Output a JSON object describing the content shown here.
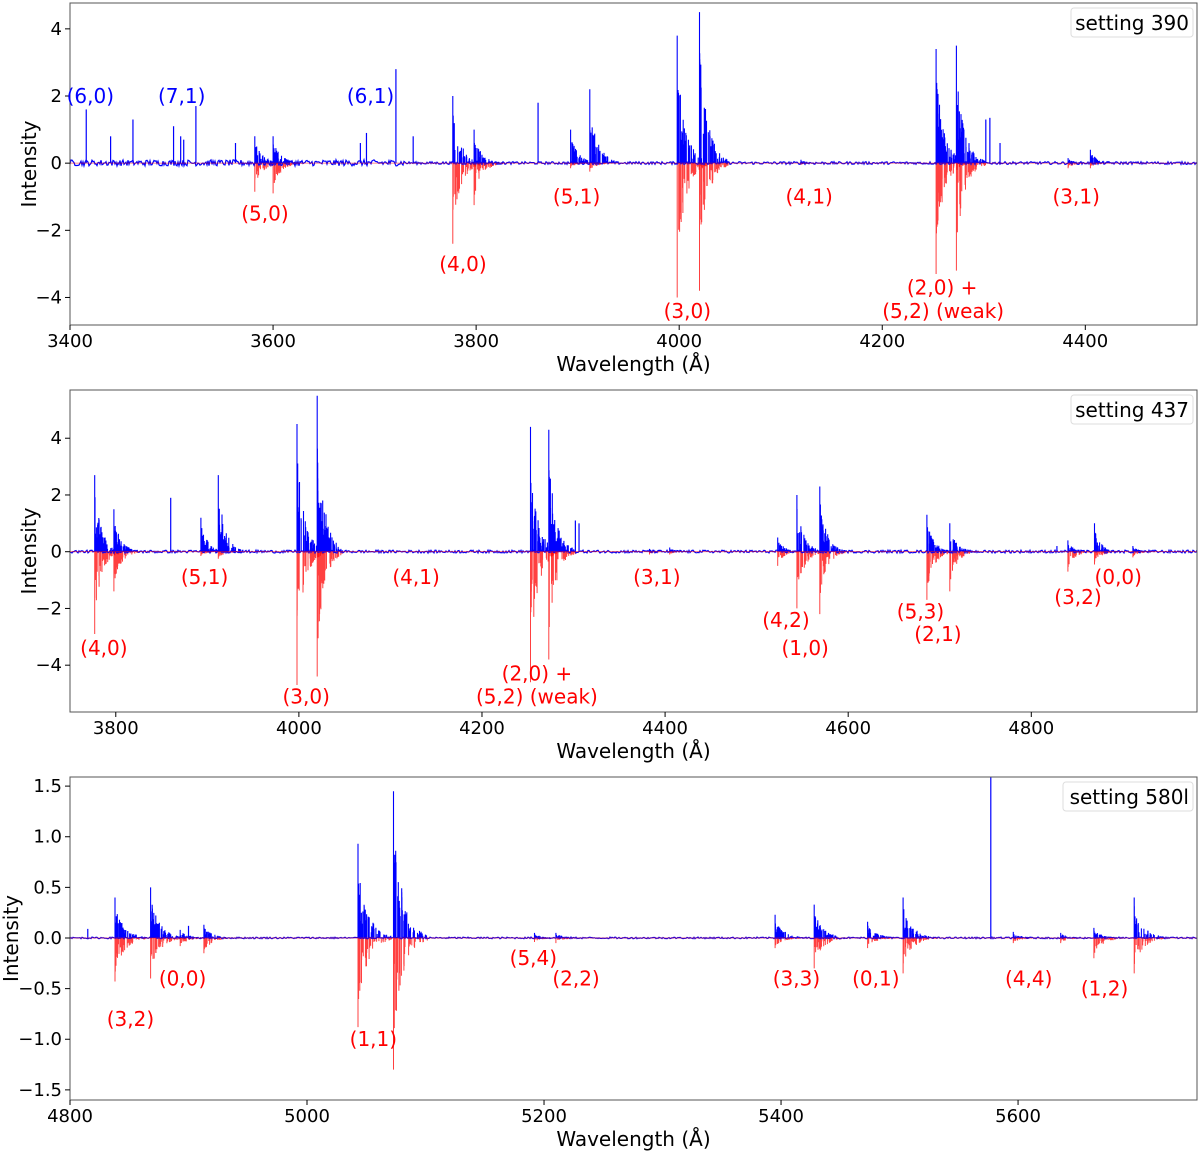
{
  "chart_data": [
    {
      "type": "line",
      "legend": "setting 390",
      "legend_position": "top-right",
      "xlabel": "Wavelength (Å)",
      "ylabel": "Intensity",
      "xlim": [
        3400,
        4510
      ],
      "ylim": [
        -4.82,
        4.77
      ],
      "xticks": [
        3400,
        3600,
        3800,
        4000,
        4200,
        4400
      ],
      "yticks": [
        4,
        2,
        0,
        -2,
        -4
      ],
      "ytick_labels": [
        "4",
        "2",
        "0",
        "−2",
        "−4"
      ],
      "grid": false,
      "series": [
        {
          "role": "observed (positive)",
          "color": "#0000ff"
        },
        {
          "role": "model (negative)",
          "color": "#ff0000"
        }
      ],
      "bands": [
        {
          "head": 3582,
          "observed": 0.8,
          "model": 0.85
        },
        {
          "head": 3600,
          "observed": 0.8,
          "model": 0.9
        },
        {
          "head": 3777,
          "observed": 2.0,
          "model": 2.4
        },
        {
          "head": 3798,
          "observed": 1.0,
          "model": 1.25
        },
        {
          "head": 3893,
          "observed": 1.0,
          "model": 0.15
        },
        {
          "head": 3912,
          "observed": 2.2,
          "model": 0.25
        },
        {
          "head": 3998,
          "observed": 3.8,
          "model": 4.0
        },
        {
          "head": 4020,
          "observed": 4.5,
          "model": 3.8
        },
        {
          "head": 4120,
          "observed": 0.1,
          "model": 0.05
        },
        {
          "head": 4253,
          "observed": 3.4,
          "model": 3.3
        },
        {
          "head": 4273,
          "observed": 3.5,
          "model": 3.2
        },
        {
          "head": 4383,
          "observed": 0.15,
          "model": 0.15
        },
        {
          "head": 4405,
          "observed": 0.4,
          "model": 0.15
        }
      ],
      "lines": [
        {
          "x": 3416,
          "y": 1.6
        },
        {
          "x": 3440,
          "y": 0.8
        },
        {
          "x": 3462,
          "y": 1.3
        },
        {
          "x": 3502,
          "y": 1.1
        },
        {
          "x": 3509,
          "y": 0.8
        },
        {
          "x": 3512,
          "y": 0.7
        },
        {
          "x": 3524,
          "y": 1.7
        },
        {
          "x": 3563,
          "y": 0.6
        },
        {
          "x": 3686,
          "y": 0.6
        },
        {
          "x": 3692,
          "y": 0.9
        },
        {
          "x": 3721,
          "y": 2.8
        },
        {
          "x": 3738,
          "y": 0.8
        },
        {
          "x": 3861,
          "y": 1.8
        },
        {
          "x": 4302,
          "y": 1.3
        },
        {
          "x": 4306,
          "y": 1.35
        },
        {
          "x": 4316,
          "y": 0.6
        }
      ],
      "annotations": [
        {
          "text": "(6,0)",
          "x": 3420,
          "y": 2.0,
          "color": "#0000ff"
        },
        {
          "text": "(7,1)",
          "x": 3510,
          "y": 2.0,
          "color": "#0000ff"
        },
        {
          "text": "(6,1)",
          "x": 3696,
          "y": 2.0,
          "color": "#0000ff"
        },
        {
          "text": "(5,0)",
          "x": 3592,
          "y": -1.5,
          "color": "#ff0000"
        },
        {
          "text": "(4,0)",
          "x": 3787,
          "y": -3.0,
          "color": "#ff0000"
        },
        {
          "text": "(5,1)",
          "x": 3899,
          "y": -1.0,
          "color": "#ff0000"
        },
        {
          "text": "(3,0)",
          "x": 4008,
          "y": -4.4,
          "color": "#ff0000"
        },
        {
          "text": "(4,1)",
          "x": 4128,
          "y": -1.0,
          "color": "#ff0000"
        },
        {
          "text": "(2,0) +",
          "x": 4259,
          "y": -3.7,
          "color": "#ff0000"
        },
        {
          "text": "(5,2) (weak)",
          "x": 4260,
          "y": -4.4,
          "color": "#ff0000"
        },
        {
          "text": "(3,1)",
          "x": 4391,
          "y": -1.0,
          "color": "#ff0000"
        }
      ]
    },
    {
      "type": "line",
      "legend": "setting 437",
      "legend_position": "top-right",
      "xlabel": "Wavelength (Å)",
      "ylabel": "Intensity",
      "xlim": [
        3750,
        4981
      ],
      "ylim": [
        -5.65,
        5.7
      ],
      "xticks": [
        3800,
        4000,
        4200,
        4400,
        4600,
        4800
      ],
      "yticks": [
        4,
        2,
        0,
        -2,
        -4
      ],
      "ytick_labels": [
        "4",
        "2",
        "0",
        "−2",
        "−4"
      ],
      "grid": false,
      "series": [
        {
          "role": "observed (positive)",
          "color": "#0000ff"
        },
        {
          "role": "model (negative)",
          "color": "#ff0000"
        }
      ],
      "bands": [
        {
          "head": 3777,
          "observed": 2.7,
          "model": 2.9
        },
        {
          "head": 3798,
          "observed": 1.5,
          "model": 1.4
        },
        {
          "head": 3893,
          "observed": 1.2,
          "model": 0.15
        },
        {
          "head": 3912,
          "observed": 2.7,
          "model": 0.25
        },
        {
          "head": 3998,
          "observed": 4.5,
          "model": 4.7
        },
        {
          "head": 4020,
          "observed": 5.5,
          "model": 4.4
        },
        {
          "head": 4253,
          "observed": 4.4,
          "model": 4.6
        },
        {
          "head": 4273,
          "observed": 4.3,
          "model": 3.8
        },
        {
          "head": 4383,
          "observed": 0.1,
          "model": 0.1
        },
        {
          "head": 4405,
          "observed": 0.15,
          "model": 0.1
        },
        {
          "head": 4523,
          "observed": 0.5,
          "model": 0.5
        },
        {
          "head": 4544,
          "observed": 2.0,
          "model": 2.0
        },
        {
          "head": 4569,
          "observed": 2.3,
          "model": 2.2
        },
        {
          "head": 4686,
          "observed": 1.3,
          "model": 1.7
        },
        {
          "head": 4711,
          "observed": 1.0,
          "model": 1.4
        },
        {
          "head": 4840,
          "observed": 0.4,
          "model": 0.7
        },
        {
          "head": 4869,
          "observed": 1.0,
          "model": 0.45
        },
        {
          "head": 4911,
          "observed": 0.2,
          "model": 0.2
        }
      ],
      "lines": [
        {
          "x": 3860,
          "y": 1.9
        },
        {
          "x": 4302,
          "y": 1.1
        },
        {
          "x": 4306,
          "y": 1.0
        },
        {
          "x": 4828,
          "y": 0.2
        }
      ],
      "annotations": [
        {
          "text": "(4,0)",
          "x": 3787,
          "y": -3.4,
          "color": "#ff0000"
        },
        {
          "text": "(5,1)",
          "x": 3897,
          "y": -0.9,
          "color": "#ff0000"
        },
        {
          "text": "(3,0)",
          "x": 4008,
          "y": -5.1,
          "color": "#ff0000"
        },
        {
          "text": "(4,1)",
          "x": 4128,
          "y": -0.9,
          "color": "#ff0000"
        },
        {
          "text": "(2,0) +",
          "x": 4260,
          "y": -4.3,
          "color": "#ff0000"
        },
        {
          "text": "(5,2) (weak)",
          "x": 4260,
          "y": -5.1,
          "color": "#ff0000"
        },
        {
          "text": "(3,1)",
          "x": 4391,
          "y": -0.9,
          "color": "#ff0000"
        },
        {
          "text": "(4,2)",
          "x": 4532,
          "y": -2.4,
          "color": "#ff0000"
        },
        {
          "text": "(1,0)",
          "x": 4553,
          "y": -3.4,
          "color": "#ff0000"
        },
        {
          "text": "(5,3)",
          "x": 4679,
          "y": -2.1,
          "color": "#ff0000"
        },
        {
          "text": "(2,1)",
          "x": 4698,
          "y": -2.9,
          "color": "#ff0000"
        },
        {
          "text": "(3,2)",
          "x": 4851,
          "y": -1.6,
          "color": "#ff0000"
        },
        {
          "text": "(0,0)",
          "x": 4895,
          "y": -0.9,
          "color": "#ff0000"
        }
      ]
    },
    {
      "type": "line",
      "legend": "setting 580l",
      "legend_position": "top-right",
      "xlabel": "Wavelength (Å)",
      "ylabel": "Intensity",
      "xlim": [
        4800,
        5751
      ],
      "ylim": [
        -1.6,
        1.59
      ],
      "xticks": [
        4800,
        5000,
        5200,
        5400,
        5600
      ],
      "yticks": [
        1.5,
        1.0,
        0.5,
        0.0,
        -0.5,
        -1.0,
        -1.5
      ],
      "ytick_labels": [
        "1.5",
        "1.0",
        "0.5",
        "0.0",
        "−0.5",
        "−1.0",
        "−1.5"
      ],
      "grid": false,
      "series": [
        {
          "role": "observed (positive)",
          "color": "#0000ff"
        },
        {
          "role": "model (negative)",
          "color": "#ff0000"
        }
      ],
      "bands": [
        {
          "head": 4838,
          "observed": 0.4,
          "model": 0.43
        },
        {
          "head": 4868,
          "observed": 0.5,
          "model": 0.4
        },
        {
          "head": 4893,
          "observed": 0.08,
          "model": 0.08
        },
        {
          "head": 4913,
          "observed": 0.13,
          "model": 0.15
        },
        {
          "head": 5043,
          "observed": 0.93,
          "model": 0.88
        },
        {
          "head": 5073,
          "observed": 1.45,
          "model": 1.3
        },
        {
          "head": 5192,
          "observed": 0.05,
          "model": 0.04
        },
        {
          "head": 5210,
          "observed": 0.05,
          "model": 0.05
        },
        {
          "head": 5395,
          "observed": 0.23,
          "model": 0.1
        },
        {
          "head": 5428,
          "observed": 0.33,
          "model": 0.3
        },
        {
          "head": 5473,
          "observed": 0.16,
          "model": 0.1
        },
        {
          "head": 5503,
          "observed": 0.4,
          "model": 0.35
        },
        {
          "head": 5596,
          "observed": 0.06,
          "model": 0.05
        },
        {
          "head": 5636,
          "observed": 0.05,
          "model": 0.05
        },
        {
          "head": 5664,
          "observed": 0.1,
          "model": 0.2
        },
        {
          "head": 5698,
          "observed": 0.4,
          "model": 0.35
        }
      ],
      "lines": [
        {
          "x": 4815,
          "y": 0.09
        },
        {
          "x": 4900,
          "y": 0.12
        },
        {
          "x": 5577,
          "y": 1.6
        }
      ],
      "annotations": [
        {
          "text": "(3,2)",
          "x": 4851,
          "y": -0.8,
          "color": "#ff0000"
        },
        {
          "text": "(0,0)",
          "x": 4895,
          "y": -0.4,
          "color": "#ff0000"
        },
        {
          "text": "(1,1)",
          "x": 5056,
          "y": -1.0,
          "color": "#ff0000"
        },
        {
          "text": "(5,4)",
          "x": 5191,
          "y": -0.2,
          "color": "#ff0000"
        },
        {
          "text": "(2,2)",
          "x": 5227,
          "y": -0.4,
          "color": "#ff0000"
        },
        {
          "text": "(3,3)",
          "x": 5413,
          "y": -0.4,
          "color": "#ff0000"
        },
        {
          "text": "(0,1)",
          "x": 5480,
          "y": -0.4,
          "color": "#ff0000"
        },
        {
          "text": "(4,4)",
          "x": 5609,
          "y": -0.4,
          "color": "#ff0000"
        },
        {
          "text": "(1,2)",
          "x": 5673,
          "y": -0.5,
          "color": "#ff0000"
        }
      ]
    }
  ]
}
